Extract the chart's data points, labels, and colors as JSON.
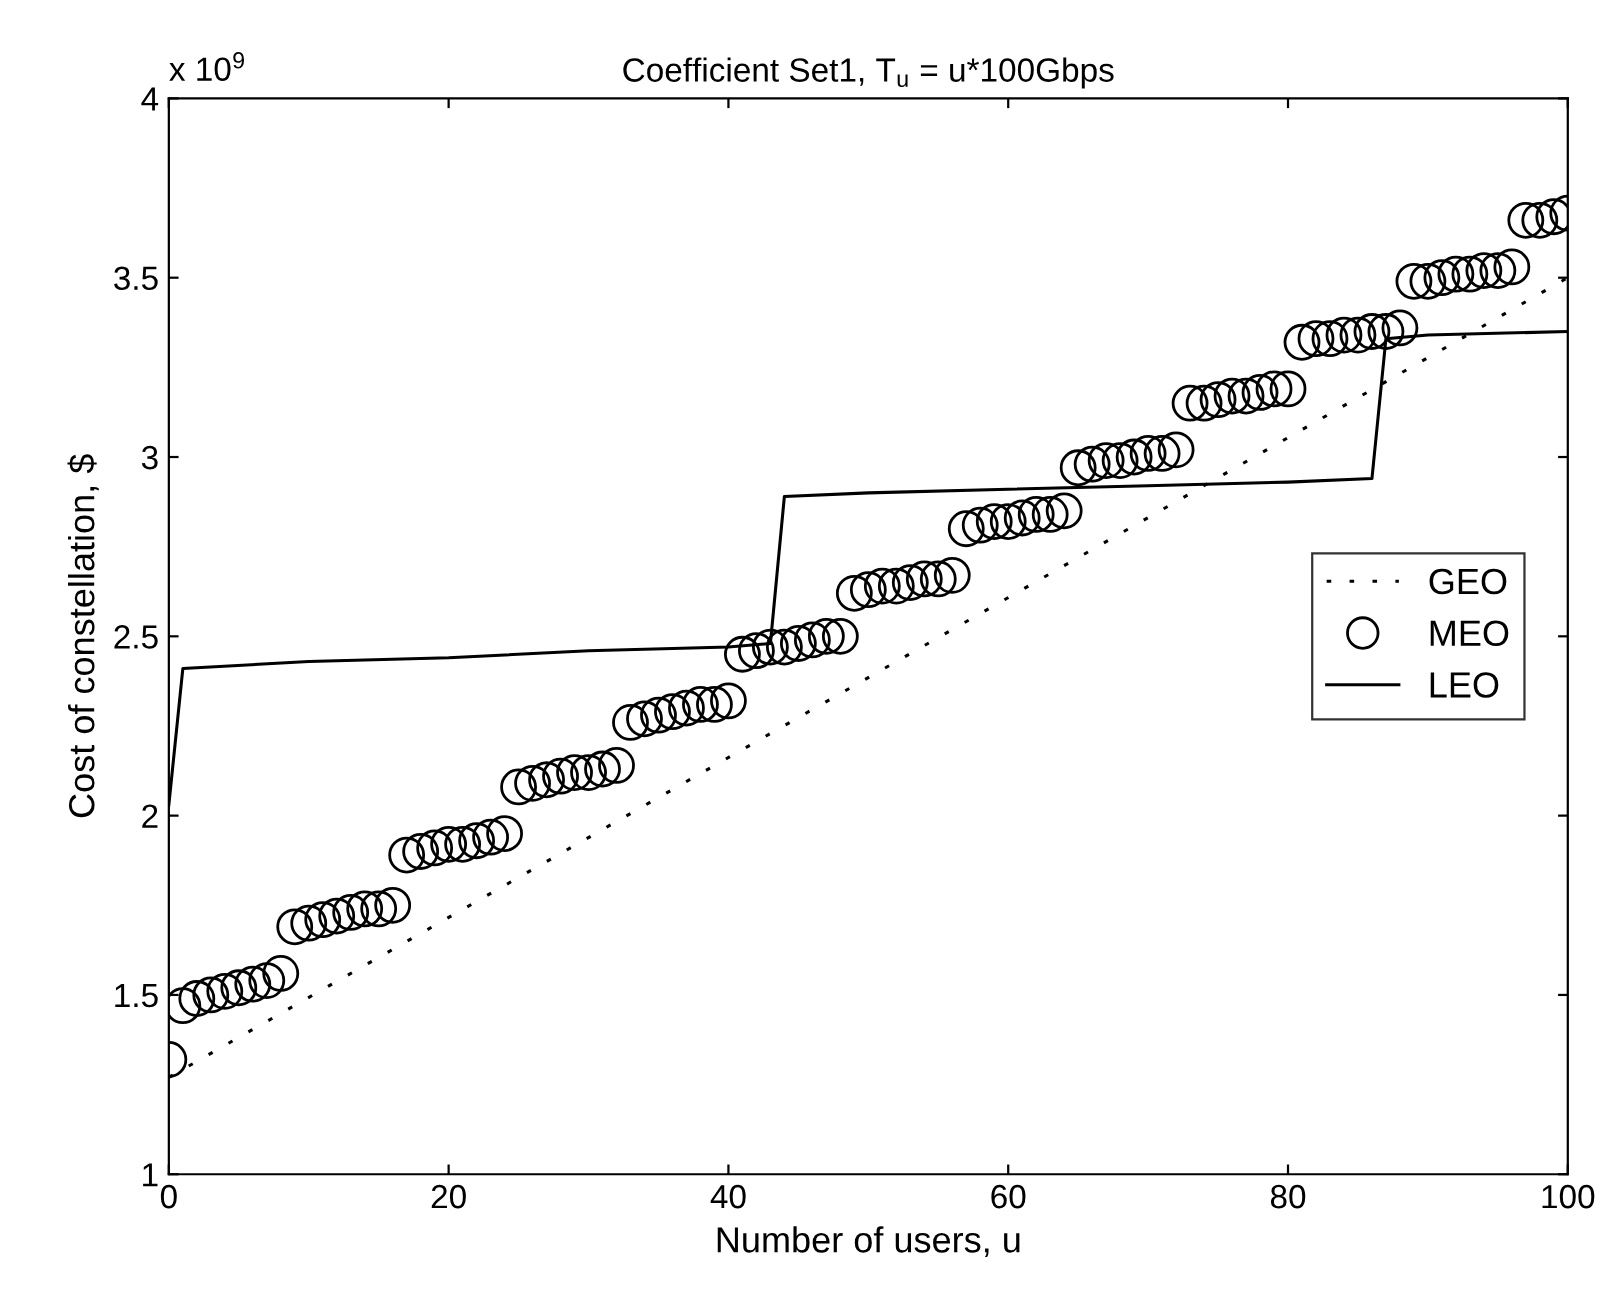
{
  "chart_data": {
    "type": "line",
    "title": "Coefficient Set1, T$_{u}$ = u*100Gbps",
    "xlabel": "Number of users, u",
    "ylabel": "Cost of constellation, $",
    "annotations": [
      "x 10$^{9}$"
    ],
    "xlim": [
      0,
      100
    ],
    "xticks": [
      0,
      20,
      40,
      60,
      80,
      100
    ],
    "ylim": [
      1,
      4
    ],
    "yticks": [
      1,
      1.5,
      2,
      2.5,
      3,
      3.5,
      4
    ],
    "grid": false,
    "legend": "right",
    "series": [
      {
        "name": "GEO",
        "color": "#000000",
        "line_style": "dotted",
        "marker": "none",
        "x": [
          0,
          100
        ],
        "values": [
          1.27,
          3.5
        ]
      },
      {
        "name": "MEO",
        "type": "scatter",
        "color": "#000000",
        "marker": "circle",
        "x": [
          0,
          1,
          2,
          3,
          4,
          5,
          6,
          7,
          8,
          9,
          10,
          11,
          12,
          13,
          14,
          15,
          16,
          17,
          18,
          19,
          20,
          21,
          22,
          23,
          24,
          25,
          26,
          27,
          28,
          29,
          30,
          31,
          32,
          33,
          34,
          35,
          36,
          37,
          38,
          39,
          40,
          41,
          42,
          43,
          44,
          45,
          46,
          47,
          48,
          49,
          50,
          51,
          52,
          53,
          54,
          55,
          56,
          57,
          58,
          59,
          60,
          61,
          62,
          63,
          64,
          65,
          66,
          67,
          68,
          69,
          70,
          71,
          72,
          73,
          74,
          75,
          76,
          77,
          78,
          79,
          80,
          81,
          82,
          83,
          84,
          85,
          86,
          87,
          88,
          89,
          90,
          91,
          92,
          93,
          94,
          95,
          96,
          97,
          98,
          99,
          100
        ],
        "values": [
          1.32,
          1.47,
          1.49,
          1.5,
          1.51,
          1.52,
          1.53,
          1.54,
          1.56,
          1.69,
          1.7,
          1.71,
          1.72,
          1.73,
          1.74,
          1.74,
          1.75,
          1.89,
          1.9,
          1.91,
          1.92,
          1.92,
          1.93,
          1.94,
          1.95,
          2.08,
          2.09,
          2.1,
          2.11,
          2.12,
          2.12,
          2.13,
          2.14,
          2.26,
          2.27,
          2.28,
          2.29,
          2.3,
          2.31,
          2.31,
          2.32,
          2.45,
          2.46,
          2.47,
          2.47,
          2.48,
          2.49,
          2.5,
          2.5,
          2.62,
          2.63,
          2.64,
          2.64,
          2.65,
          2.66,
          2.66,
          2.67,
          2.8,
          2.81,
          2.82,
          2.82,
          2.83,
          2.84,
          2.84,
          2.85,
          2.97,
          2.98,
          2.99,
          2.99,
          3.0,
          3.01,
          3.01,
          3.02,
          3.15,
          3.15,
          3.16,
          3.17,
          3.17,
          3.18,
          3.19,
          3.19,
          3.32,
          3.33,
          3.33,
          3.34,
          3.34,
          3.35,
          3.35,
          3.36,
          3.49,
          3.49,
          3.5,
          3.51,
          3.51,
          3.52,
          3.52,
          3.53,
          3.66,
          3.66,
          3.67,
          3.68
        ]
      },
      {
        "name": "LEO",
        "color": "#000000",
        "line_style": "solid",
        "marker": "none",
        "x": [
          0,
          1,
          10,
          20,
          30,
          40,
          43,
          44,
          50,
          60,
          70,
          80,
          86,
          87,
          90,
          100
        ],
        "values": [
          2.03,
          2.41,
          2.43,
          2.44,
          2.46,
          2.47,
          2.48,
          2.89,
          2.9,
          2.91,
          2.92,
          2.93,
          2.94,
          3.33,
          3.34,
          3.35
        ]
      }
    ]
  }
}
